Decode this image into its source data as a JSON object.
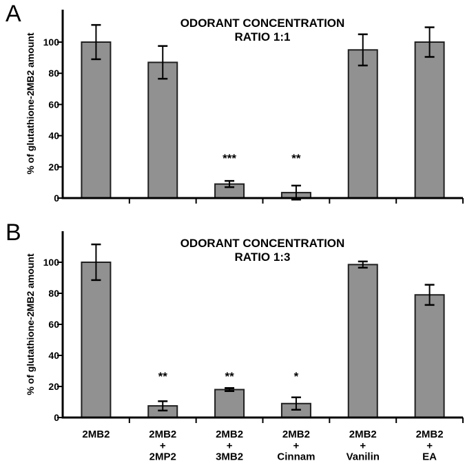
{
  "figure": {
    "background": "#ffffff",
    "text_color": "#000000"
  },
  "chart_data": [
    {
      "type": "bar",
      "panel_label": "A",
      "title": "ODORANT CONCENTRATION",
      "subtitle": "RATIO 1:1",
      "ylabel": "% of glutathione-2MB2 amount",
      "ylim": [
        0,
        120
      ],
      "yticks": [
        0,
        20,
        40,
        60,
        80,
        100
      ],
      "grid": false,
      "legend": "none",
      "show_x_labels": false,
      "categories": [
        [
          "2MB2"
        ],
        [
          "2MB2",
          "+",
          "2MP2"
        ],
        [
          "2MB2",
          "+",
          "3MB2"
        ],
        [
          "2MB2",
          "+",
          "Cinnam"
        ],
        [
          "2MB2",
          "+",
          "Vanilin"
        ],
        [
          "2MB2",
          "+",
          "EA"
        ]
      ],
      "values": [
        100,
        87,
        9,
        3.5,
        95,
        100
      ],
      "errors": [
        11,
        10.5,
        2,
        4.5,
        10,
        9.5
      ],
      "significance": [
        "",
        "",
        "***",
        "**",
        "",
        ""
      ],
      "sig_height": 27.5,
      "bar_color": "#919191",
      "bar_border": "#1f1f1f",
      "axis_color": "#000000"
    },
    {
      "type": "bar",
      "panel_label": "B",
      "title": "ODORANT CONCENTRATION",
      "subtitle": "RATIO 1:3",
      "ylabel": "% of glutathione-2MB2 amount",
      "ylim": [
        0,
        120
      ],
      "yticks": [
        0,
        20,
        40,
        60,
        80,
        100
      ],
      "grid": false,
      "legend": "none",
      "show_x_labels": true,
      "categories": [
        [
          "2MB2"
        ],
        [
          "2MB2",
          "+",
          "2MP2"
        ],
        [
          "2MB2",
          "+",
          "3MB2"
        ],
        [
          "2MB2",
          "+",
          "Cinnam"
        ],
        [
          "2MB2",
          "+",
          "Vanilin"
        ],
        [
          "2MB2",
          "+",
          "EA"
        ]
      ],
      "values": [
        100,
        7.5,
        18,
        9,
        98.5,
        79
      ],
      "errors": [
        11.5,
        3,
        1,
        4,
        2,
        6.5
      ],
      "significance": [
        "",
        "**",
        "**",
        "*",
        "",
        ""
      ],
      "sig_height": 28.5,
      "bar_color": "#919191",
      "bar_border": "#1f1f1f",
      "axis_color": "#000000"
    }
  ]
}
